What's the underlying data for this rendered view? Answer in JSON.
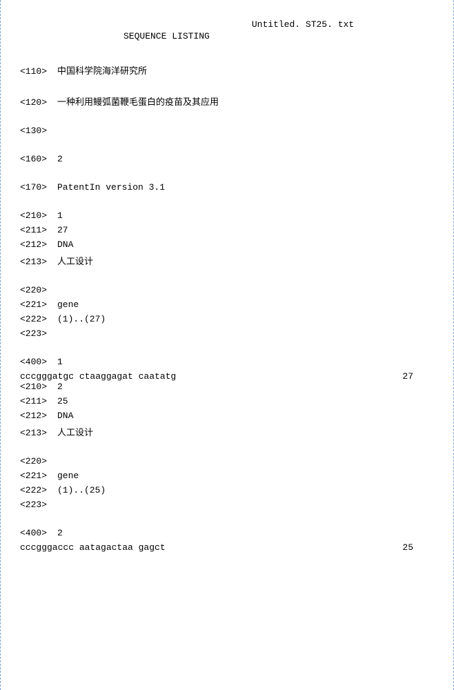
{
  "header": {
    "filename": "Untitled. ST25. txt",
    "title": "SEQUENCE LISTING"
  },
  "blocks": [
    {
      "tag": "<110>",
      "value": "中国科学院海洋研究所",
      "spaced": true
    },
    {
      "tag": "<120>",
      "value": "一种利用鳗弧菌鞭毛蛋白的疫苗及其应用",
      "spaced": true
    },
    {
      "tag": "<130>",
      "value": "",
      "spaced": true
    },
    {
      "tag": "<160>",
      "value": "2",
      "spaced": true,
      "mono": true
    },
    {
      "tag": "<170>",
      "value": "PatentIn version 3.1",
      "spaced": true,
      "mono": true
    }
  ],
  "seq1_meta": [
    {
      "tag": "<210>",
      "value": "1",
      "mono": true
    },
    {
      "tag": "<211>",
      "value": "27",
      "mono": true
    },
    {
      "tag": "<212>",
      "value": "DNA",
      "mono": true
    },
    {
      "tag": "<213>",
      "value": "人工设计"
    }
  ],
  "seq1_feat": [
    {
      "tag": "<220>",
      "value": ""
    },
    {
      "tag": "<221>",
      "value": "gene",
      "mono": true
    },
    {
      "tag": "<222>",
      "value": "(1)..(27)",
      "mono": true
    },
    {
      "tag": "<223>",
      "value": ""
    }
  ],
  "seq1_400": {
    "tag": "<400>",
    "value": "1",
    "mono": true
  },
  "seq1_data": {
    "seq": "cccgggatgc ctaaggagat caatatg",
    "len": "27"
  },
  "seq2_meta": [
    {
      "tag": "<210>",
      "value": "2",
      "mono": true
    },
    {
      "tag": "<211>",
      "value": "25",
      "mono": true
    },
    {
      "tag": "<212>",
      "value": "DNA",
      "mono": true
    },
    {
      "tag": "<213>",
      "value": "人工设计"
    }
  ],
  "seq2_feat": [
    {
      "tag": "<220>",
      "value": ""
    },
    {
      "tag": "<221>",
      "value": "gene",
      "mono": true
    },
    {
      "tag": "<222>",
      "value": "(1)..(25)",
      "mono": true
    },
    {
      "tag": "<223>",
      "value": ""
    }
  ],
  "seq2_400": {
    "tag": "<400>",
    "value": "2",
    "mono": true
  },
  "seq2_data": {
    "seq": "cccgggaccc aatagactaa gagct",
    "len": "25"
  }
}
